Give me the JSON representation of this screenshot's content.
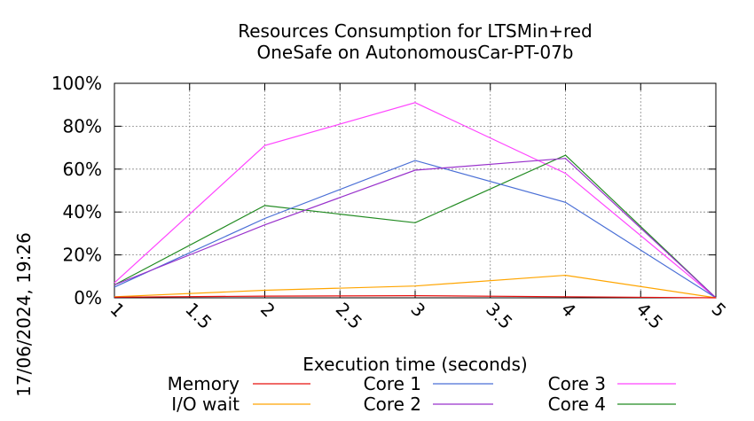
{
  "chart_data": {
    "type": "line",
    "title_line1": "Resources Consumption for LTSMin+red",
    "title_line2": "OneSafe on AutonomousCar-PT-07b",
    "xlabel": "Execution time (seconds)",
    "ylabel": "",
    "side_label": "17/06/2024, 19:26",
    "xlim": [
      1,
      5
    ],
    "ylim": [
      0,
      100
    ],
    "x_ticks": [
      "1",
      "1.5",
      "2",
      "2.5",
      "3",
      "3.5",
      "4",
      "4.5",
      "5"
    ],
    "x_tick_values": [
      1,
      1.5,
      2,
      2.5,
      3,
      3.5,
      4,
      4.5,
      5
    ],
    "y_ticks": [
      "0%",
      "20%",
      "40%",
      "60%",
      "80%",
      "100%"
    ],
    "y_tick_values": [
      0,
      20,
      40,
      60,
      80,
      100
    ],
    "grid": true,
    "legend_position": "bottom",
    "series": [
      {
        "name": "Memory",
        "color": "#e8100f",
        "x": [
          1,
          2,
          3,
          4,
          5
        ],
        "values": [
          0.3,
          0.8,
          1.0,
          0.5,
          0
        ]
      },
      {
        "name": "I/O wait",
        "color": "#ffa500",
        "x": [
          1,
          2,
          3,
          4,
          5
        ],
        "values": [
          0.5,
          3.5,
          5.5,
          10.5,
          0
        ]
      },
      {
        "name": "Core 1",
        "color": "#4a6fd6",
        "x": [
          1,
          2,
          3,
          4,
          5
        ],
        "values": [
          5,
          37,
          64,
          44.5,
          0
        ]
      },
      {
        "name": "Core 2",
        "color": "#9932cc",
        "x": [
          1,
          2,
          3,
          4,
          5
        ],
        "values": [
          6,
          34,
          59.5,
          65,
          0
        ]
      },
      {
        "name": "Core 3",
        "color": "#ff44ff",
        "x": [
          1,
          2,
          3,
          4,
          5
        ],
        "values": [
          7,
          71,
          91,
          58,
          0
        ]
      },
      {
        "name": "Core 4",
        "color": "#228b22",
        "x": [
          1,
          2,
          3,
          4,
          5
        ],
        "values": [
          6,
          43,
          35,
          66.5,
          0
        ]
      }
    ]
  }
}
